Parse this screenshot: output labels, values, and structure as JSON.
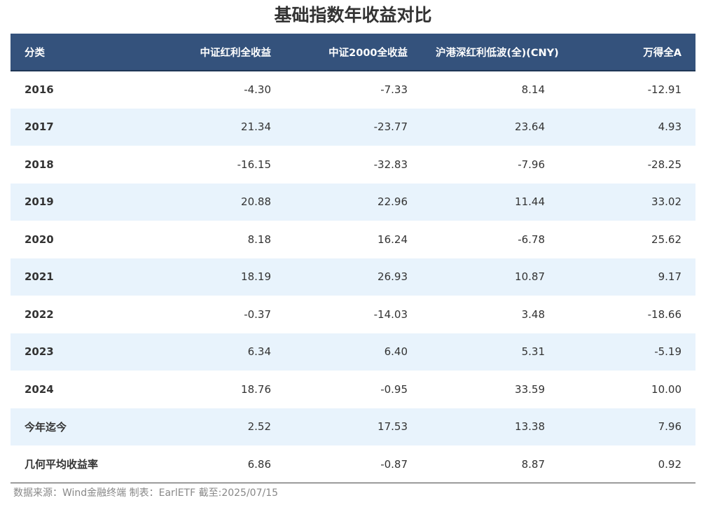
{
  "title": "基础指数年收益对比",
  "source": "数据来源：Wind金融终端 制表：EarlETF 截至:2025/07/15",
  "chart_data": {
    "type": "table",
    "title": "基础指数年收益对比",
    "columns": [
      "分类",
      "中证红利全收益",
      "中证2000全收益",
      "沪港深红利低波(全)(CNY)",
      "万得全A"
    ],
    "rows": [
      [
        "2016",
        "-4.30",
        "-7.33",
        "8.14",
        "-12.91"
      ],
      [
        "2017",
        "21.34",
        "-23.77",
        "23.64",
        "4.93"
      ],
      [
        "2018",
        "-16.15",
        "-32.83",
        "-7.96",
        "-28.25"
      ],
      [
        "2019",
        "20.88",
        "22.96",
        "11.44",
        "33.02"
      ],
      [
        "2020",
        "8.18",
        "16.24",
        "-6.78",
        "25.62"
      ],
      [
        "2021",
        "18.19",
        "26.93",
        "10.87",
        "9.17"
      ],
      [
        "2022",
        "-0.37",
        "-14.03",
        "3.48",
        "-18.66"
      ],
      [
        "2023",
        "6.34",
        "6.40",
        "5.31",
        "-5.19"
      ],
      [
        "2024",
        "18.76",
        "-0.95",
        "33.59",
        "10.00"
      ],
      [
        "今年迄今",
        "2.52",
        "17.53",
        "13.38",
        "7.96"
      ],
      [
        "几何平均收益率",
        "6.86",
        "-0.87",
        "8.87",
        "0.92"
      ]
    ]
  },
  "colors": {
    "header_bg": "#34527c",
    "header_text": "#ffffff",
    "row_alt_bg": "#e8f3fc",
    "row_bg": "#ffffff",
    "text": "#333333",
    "source_text": "#888888"
  }
}
